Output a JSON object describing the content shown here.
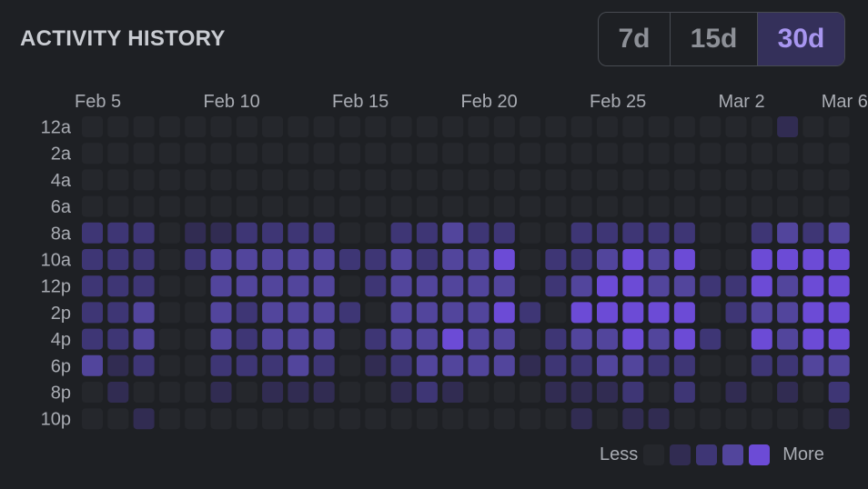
{
  "header": {
    "title": "ACTIVITY HISTORY"
  },
  "range_selector": {
    "options": [
      {
        "label": "7d",
        "active": false
      },
      {
        "label": "15d",
        "active": false
      },
      {
        "label": "30d",
        "active": true
      }
    ]
  },
  "legend": {
    "less": "Less",
    "more": "More"
  },
  "colors": [
    "#25272c",
    "#312c52",
    "#3e3675",
    "#52459c",
    "#6c4bd6"
  ],
  "chart_data": {
    "type": "heatmap",
    "title": "ACTIVITY HISTORY",
    "x_tick_labels": [
      {
        "column": 0,
        "label": "Feb 5"
      },
      {
        "column": 5,
        "label": "Feb 10"
      },
      {
        "column": 10,
        "label": "Feb 15"
      },
      {
        "column": 15,
        "label": "Feb 20"
      },
      {
        "column": 20,
        "label": "Feb 25"
      },
      {
        "column": 25,
        "label": "Mar 2"
      },
      {
        "column": 29,
        "label": "Mar 6"
      }
    ],
    "y_labels": [
      "12a",
      "2a",
      "4a",
      "6a",
      "8a",
      "10a",
      "12p",
      "2p",
      "4p",
      "6p",
      "8p",
      "10p"
    ],
    "levels": 5,
    "values": [
      [
        0,
        0,
        0,
        0,
        0,
        0,
        0,
        0,
        0,
        0,
        0,
        0,
        0,
        0,
        0,
        0,
        0,
        0,
        0,
        0,
        0,
        0,
        0,
        0,
        0,
        0,
        0,
        0,
        0,
        0
      ],
      [
        0,
        0,
        0,
        0,
        0,
        0,
        0,
        0,
        0,
        0,
        0,
        0,
        0,
        0,
        0,
        0,
        0,
        0,
        0,
        0,
        0,
        0,
        0,
        0,
        0,
        0,
        0,
        0,
        0,
        0
      ],
      [
        0,
        0,
        0,
        0,
        0,
        0,
        0,
        0,
        0,
        0,
        0,
        0,
        0,
        0,
        0,
        0,
        0,
        0,
        0,
        0,
        0,
        0,
        0,
        0,
        0,
        0,
        0,
        0,
        0,
        0
      ],
      [
        0,
        0,
        0,
        0,
        0,
        0,
        0,
        0,
        0,
        0,
        0,
        0,
        0,
        0,
        0,
        0,
        0,
        0,
        0,
        0,
        0,
        0,
        0,
        0,
        0,
        0,
        0,
        0,
        0,
        0
      ],
      [
        2,
        2,
        2,
        0,
        1,
        1,
        2,
        2,
        2,
        2,
        0,
        0,
        2,
        2,
        3,
        2,
        2,
        0,
        0,
        2,
        2,
        2,
        2,
        2,
        0,
        0,
        2,
        3,
        2,
        3
      ],
      [
        2,
        2,
        2,
        0,
        2,
        3,
        3,
        3,
        3,
        3,
        2,
        2,
        3,
        2,
        3,
        3,
        4,
        0,
        2,
        2,
        3,
        4,
        3,
        4,
        0,
        0,
        4,
        4,
        4,
        4
      ],
      [
        2,
        2,
        2,
        0,
        0,
        3,
        3,
        3,
        3,
        3,
        0,
        2,
        3,
        3,
        3,
        3,
        3,
        0,
        2,
        3,
        4,
        4,
        3,
        3,
        2,
        2,
        4,
        3,
        4,
        4
      ],
      [
        2,
        2,
        3,
        0,
        0,
        3,
        2,
        3,
        3,
        3,
        2,
        0,
        3,
        3,
        3,
        3,
        4,
        2,
        0,
        4,
        4,
        4,
        4,
        4,
        0,
        2,
        3,
        3,
        4,
        4
      ],
      [
        2,
        2,
        3,
        0,
        0,
        3,
        2,
        3,
        3,
        3,
        0,
        2,
        3,
        3,
        4,
        3,
        3,
        0,
        2,
        3,
        3,
        4,
        3,
        4,
        2,
        0,
        4,
        3,
        4,
        4
      ],
      [
        3,
        1,
        2,
        0,
        0,
        2,
        2,
        2,
        3,
        2,
        0,
        1,
        2,
        3,
        3,
        3,
        3,
        1,
        2,
        2,
        3,
        3,
        2,
        2,
        0,
        0,
        2,
        2,
        3,
        3
      ],
      [
        0,
        1,
        0,
        0,
        0,
        1,
        0,
        1,
        1,
        1,
        0,
        0,
        1,
        2,
        1,
        0,
        0,
        0,
        1,
        1,
        1,
        2,
        0,
        2,
        0,
        1,
        0,
        1,
        0,
        2
      ],
      [
        0,
        0,
        1,
        0,
        0,
        0,
        0,
        0,
        0,
        0,
        0,
        0,
        0,
        0,
        0,
        0,
        0,
        0,
        0,
        1,
        0,
        1,
        1,
        0,
        0,
        0,
        0,
        0,
        0,
        1
      ]
    ],
    "special_cells": [
      {
        "row": 0,
        "column": 27,
        "level": 1
      }
    ],
    "grid": false,
    "legend": "bottom-right"
  }
}
